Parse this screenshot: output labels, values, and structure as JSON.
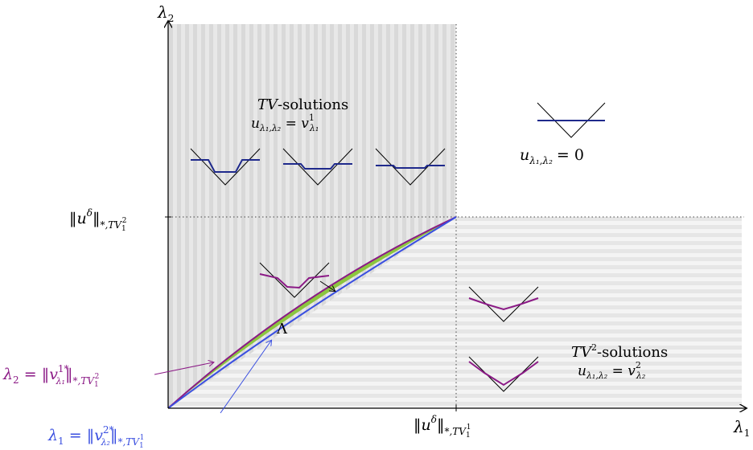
{
  "axes": {
    "x_label": "λ",
    "x_label_sub": "1",
    "y_label": "λ",
    "y_label_sub": "2",
    "x_tick": {
      "norm": "‖u",
      "sup": "δ",
      "tail": "‖",
      "sub": "*,TV",
      "sub_sub": "1",
      "sub_sup": "1"
    },
    "y_tick": {
      "norm": "‖u",
      "sup": "δ",
      "tail": "‖",
      "sub": "*,TV",
      "sub_sub": "1",
      "sub_sup": "2"
    }
  },
  "regions": {
    "tv": {
      "title_math": "TV",
      "title_rm": "-solutions",
      "eq_lhs": "u",
      "eq_lhs_sub": "λ₁,λ₂",
      "eq_rhs": "v",
      "eq_rhs_sup": "1",
      "eq_rhs_sub": "λ₁"
    },
    "zero": {
      "eq_lhs": "u",
      "eq_lhs_sub": "λ₁,λ₂",
      "eq_rhs": "= 0"
    },
    "tv2": {
      "title_math": "TV",
      "title_sup": "2",
      "title_rm": "-solutions",
      "eq_lhs": "u",
      "eq_lhs_sub": "λ₁,λ₂",
      "eq_rhs": "v",
      "eq_rhs_sup": "2",
      "eq_rhs_sub": "λ₂"
    },
    "lambda": {
      "label": "Λ"
    }
  },
  "curves": {
    "upper": {
      "lhs": "λ",
      "lhs_sub": "2",
      "norm": "‖v",
      "sup": "1*",
      "sub_inner": "λ₁",
      "tail": "‖",
      "sub": "*,TV",
      "sub_sub": "1",
      "sub_sup": "2"
    },
    "lower": {
      "lhs": "λ",
      "lhs_sub": "1",
      "norm": "‖v",
      "sup": "2*",
      "sub_inner": "λ₂",
      "tail": "‖",
      "sub": "*,TV",
      "sub_sub": "1",
      "sub_sup": "1"
    }
  },
  "colors": {
    "navy": "#1f2a8c",
    "purple": "#8b1a86",
    "blue": "#3a4fe0",
    "green": "#8cc63f",
    "gray_a": "#dcdcdc",
    "gray_b": "#ececec"
  }
}
